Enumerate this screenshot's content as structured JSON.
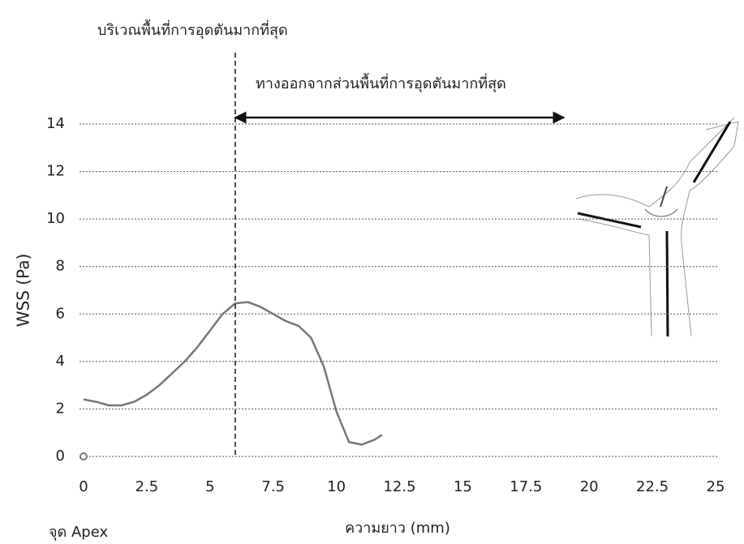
{
  "chart_data": {
    "type": "line",
    "ylabel": "WSS (Pa)",
    "xlabel": "ความยาว (mm)",
    "x": [
      0,
      0.5,
      1,
      1.5,
      2,
      2.5,
      3,
      3.5,
      4,
      4.5,
      5,
      5.5,
      6,
      6.5,
      7,
      7.5,
      8,
      8.5,
      9,
      9.5,
      10,
      10.5,
      11,
      11.5,
      11.8
    ],
    "values": [
      2.4,
      2.3,
      2.15,
      2.15,
      2.3,
      2.6,
      3.0,
      3.5,
      4.0,
      4.6,
      5.3,
      6.0,
      6.45,
      6.5,
      6.3,
      6.0,
      5.7,
      5.5,
      5.0,
      3.8,
      1.9,
      0.6,
      0.5,
      0.7,
      0.9
    ],
    "color": "#777777",
    "xlim": [
      0,
      25
    ],
    "xticks": [
      0,
      2.5,
      5,
      7.5,
      10,
      12.5,
      15,
      17.5,
      20,
      22.5,
      25
    ],
    "ylim": [
      0,
      14
    ],
    "yticks": [
      0,
      2,
      4,
      6,
      8,
      10,
      12,
      14
    ],
    "grid": true,
    "marker_line": {
      "text": "บริเวณพื้นที่การอุดตันมากที่สุด",
      "x": 6
    },
    "arrow": {
      "text": "ทางออกจากส่วนพื้นที่การอุดตันมากที่สุด",
      "x": [
        6,
        19
      ],
      "y": 14
    },
    "apex": {
      "text": "จุด Apex",
      "x": 0,
      "y": 0
    }
  }
}
